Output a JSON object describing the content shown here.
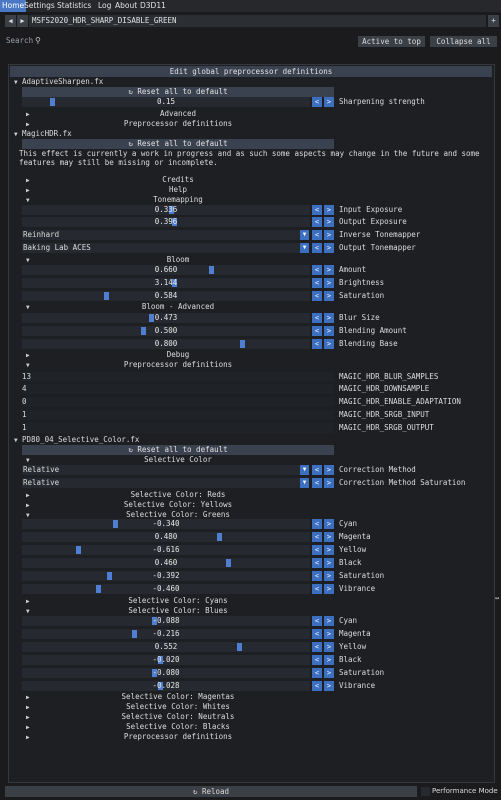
{
  "menu": [
    {
      "label": "Home",
      "active": true
    },
    {
      "label": "Settings",
      "active": false
    },
    {
      "label": "Statistics",
      "active": false
    },
    {
      "label": "Log",
      "active": false
    },
    {
      "label": "About",
      "active": false
    },
    {
      "label": "D3D11",
      "active": false
    }
  ],
  "preset": {
    "name": "MSFS2020_HDR_SHARP_DISABLE_GREEN",
    "prev": "◀",
    "next": "▶",
    "add": "+"
  },
  "search": {
    "placeholder": "Search",
    "active_to_top": "Active to top",
    "collapse_all": "Collapse all"
  },
  "edit_global": "Edit global preprocessor definitions",
  "reset_label": "↻ Reset all to default",
  "sections": {
    "adaptive": {
      "title": "AdaptiveSharpen.fx",
      "advanced": "Advanced",
      "preproc": "Preprocessor definitions"
    },
    "magic": {
      "title": "MagicHDR.fx",
      "notice": "This effect is currently a work in progress and as such some aspects may change in the future and some features may still be missing or incomplete.",
      "credits": "Credits",
      "help": "Help",
      "tonemapping": "Tonemapping",
      "bloom": "Bloom",
      "bloom_adv": "Bloom - Advanced",
      "debug": "Debug",
      "preproc": "Preprocessor definitions"
    },
    "pd80": {
      "title": "PD80_04_Selective_Color.fx",
      "selective_color": "Selective Color",
      "reds": "Selective Color: Reds",
      "yellows": "Selective Color: Yellows",
      "greens": "Selective Color: Greens",
      "cyans": "Selective Color: Cyans",
      "blues": "Selective Color: Blues",
      "magentas": "Selective Color: Magentas",
      "whites": "Selective Color: Whites",
      "neutrals": "Selective Color: Neutrals",
      "blacks": "Selective Color: Blacks",
      "preproc": "Preprocessor definitions"
    }
  },
  "sliders": {
    "sharp": {
      "value": "0.15",
      "label": "Sharpening strength",
      "level": 0.1
    },
    "in_exp": {
      "value": "0.336",
      "label": "Input Exposure",
      "level": 0.52
    },
    "out_exp": {
      "value": "0.396",
      "label": "Output Exposure",
      "level": 0.53
    },
    "amount": {
      "value": "0.660",
      "label": "Amount",
      "level": 0.66
    },
    "brightness": {
      "value": "3.144",
      "label": "Brightness",
      "level": 0.53
    },
    "saturation": {
      "value": "0.584",
      "label": "Saturation",
      "level": 0.29
    },
    "blur": {
      "value": "0.473",
      "label": "Blur Size",
      "level": 0.45
    },
    "blend_amt": {
      "value": "0.500",
      "label": "Blending Amount",
      "level": 0.42
    },
    "blend_base": {
      "value": "0.800",
      "label": "Blending Base",
      "level": 0.77
    },
    "g_cyan": {
      "value": "-0.340",
      "label": "Cyan",
      "level": 0.32
    },
    "g_magenta": {
      "value": "0.480",
      "label": "Magenta",
      "level": 0.69
    },
    "g_yellow": {
      "value": "-0.616",
      "label": "Yellow",
      "level": 0.19
    },
    "g_black": {
      "value": "0.460",
      "label": "Black",
      "level": 0.72
    },
    "g_sat": {
      "value": "-0.392",
      "label": "Saturation",
      "level": 0.3
    },
    "g_vib": {
      "value": "-0.460",
      "label": "Vibrance",
      "level": 0.26
    },
    "b_cyan": {
      "value": "-0.088",
      "label": "Cyan",
      "level": 0.46
    },
    "b_magenta": {
      "value": "-0.216",
      "label": "Magenta",
      "level": 0.39
    },
    "b_yellow": {
      "value": "0.552",
      "label": "Yellow",
      "level": 0.76
    },
    "b_black": {
      "value": "-0.020",
      "label": "Black",
      "level": 0.48
    },
    "b_sat": {
      "value": "-0.080",
      "label": "Saturation",
      "level": 0.46
    },
    "b_vib": {
      "value": "-0.028",
      "label": "Vibrance",
      "level": 0.48
    }
  },
  "combos": {
    "inv_tm": {
      "value": "Reinhard",
      "label": "Inverse Tonemapper"
    },
    "out_tm": {
      "value": "Baking Lab ACES",
      "label": "Output Tonemapper"
    },
    "corr": {
      "value": "Relative",
      "label": "Correction Method"
    },
    "corr_sat": {
      "value": "Relative",
      "label": "Correction Method Saturation"
    }
  },
  "defines": [
    {
      "value": "13",
      "name": "MAGIC_HDR_BLUR_SAMPLES"
    },
    {
      "value": "4",
      "name": "MAGIC_HDR_DOWNSAMPLE"
    },
    {
      "value": "0",
      "name": "MAGIC_HDR_ENABLE_ADAPTATION"
    },
    {
      "value": "1",
      "name": "MAGIC_HDR_SRGB_INPUT"
    },
    {
      "value": "1",
      "name": "MAGIC_HDR_SRGB_OUTPUT"
    }
  ],
  "footer": {
    "reload": "↻ Reload",
    "perf": "Performance Mode"
  },
  "colors": {
    "accent": "#3d6fc0",
    "bg": "#1b1b1e",
    "panel": "#1d1f23"
  }
}
